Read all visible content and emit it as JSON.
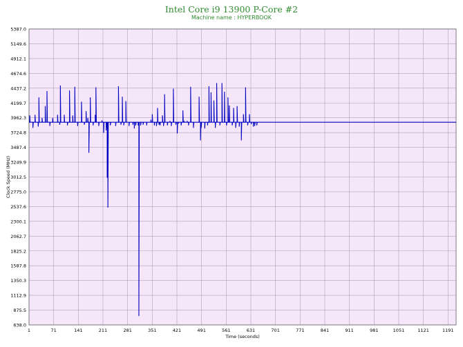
{
  "chart_data": {
    "type": "line",
    "title": "Intel Core i9 13900 P-Core #2",
    "subtitle": "Machine name : HYPERBOOK",
    "xlabel": "Time (seconds)",
    "ylabel": "Clock Speed (MHz)",
    "xlim": [
      1,
      1214
    ],
    "ylim": [
      638.0,
      5387.0
    ],
    "x_ticks": [
      1,
      71,
      141,
      211,
      281,
      351,
      421,
      491,
      561,
      631,
      701,
      771,
      841,
      911,
      981,
      1051,
      1121,
      1191
    ],
    "y_ticks": [
      638.0,
      875.5,
      1112.9,
      1350.3,
      1587.8,
      1825.2,
      2062.7,
      2300.1,
      2537.6,
      2775.0,
      3012.5,
      3249.9,
      3487.4,
      3724.8,
      3962.3,
      4199.7,
      4437.2,
      4674.6,
      4912.1,
      5149.6,
      5387.0
    ],
    "grid": true,
    "baseline": 3890,
    "colors": {
      "line": "#0000c0",
      "plot_bg": "#f5e6fa",
      "grid": "#b0a0b8",
      "title": "#2e8b2e"
    },
    "series": [
      {
        "name": "",
        "events": [
          [
            3,
            4000
          ],
          [
            12,
            3800
          ],
          [
            18,
            4010
          ],
          [
            27,
            3820
          ],
          [
            29,
            4290
          ],
          [
            38,
            3960
          ],
          [
            47,
            4150
          ],
          [
            52,
            4390
          ],
          [
            60,
            3830
          ],
          [
            68,
            3960
          ],
          [
            82,
            4010
          ],
          [
            88,
            3850
          ],
          [
            90,
            4480
          ],
          [
            101,
            4010
          ],
          [
            110,
            3840
          ],
          [
            116,
            4400
          ],
          [
            125,
            4000
          ],
          [
            131,
            4460
          ],
          [
            139,
            3830
          ],
          [
            150,
            4220
          ],
          [
            158,
            3850
          ],
          [
            163,
            4070
          ],
          [
            168,
            3960
          ],
          [
            171,
            3400
          ],
          [
            175,
            4290
          ],
          [
            183,
            3840
          ],
          [
            189,
            4010
          ],
          [
            191,
            4450
          ],
          [
            199,
            3830
          ],
          [
            208,
            3920
          ],
          [
            213,
            3720
          ],
          [
            220,
            3760
          ],
          [
            223,
            3000
          ],
          [
            225,
            2520
          ],
          [
            232,
            3840
          ],
          [
            247,
            3830
          ],
          [
            255,
            4470
          ],
          [
            262,
            3850
          ],
          [
            266,
            4300
          ],
          [
            270,
            3840
          ],
          [
            276,
            4230
          ],
          [
            285,
            3830
          ],
          [
            296,
            3850
          ],
          [
            300,
            3790
          ],
          [
            304,
            3840
          ],
          [
            311,
            3840
          ],
          [
            313,
            780
          ],
          [
            318,
            3840
          ],
          [
            325,
            3850
          ],
          [
            335,
            3840
          ],
          [
            347,
            3930
          ],
          [
            351,
            4020
          ],
          [
            357,
            3840
          ],
          [
            363,
            3830
          ],
          [
            366,
            4120
          ],
          [
            370,
            3850
          ],
          [
            373,
            3840
          ],
          [
            380,
            4000
          ],
          [
            383,
            3830
          ],
          [
            386,
            4340
          ],
          [
            394,
            3840
          ],
          [
            401,
            3910
          ],
          [
            405,
            3830
          ],
          [
            411,
            4430
          ],
          [
            418,
            3850
          ],
          [
            422,
            3710
          ],
          [
            426,
            3880
          ],
          [
            433,
            3840
          ],
          [
            438,
            4080
          ],
          [
            442,
            3900
          ],
          [
            450,
            3910
          ],
          [
            454,
            3840
          ],
          [
            460,
            4460
          ],
          [
            468,
            3800
          ],
          [
            479,
            3890
          ],
          [
            484,
            4300
          ],
          [
            488,
            3600
          ],
          [
            490,
            3800
          ],
          [
            494,
            3890
          ],
          [
            500,
            3790
          ],
          [
            508,
            3840
          ],
          [
            512,
            4470
          ],
          [
            518,
            4370
          ],
          [
            526,
            4240
          ],
          [
            530,
            3800
          ],
          [
            534,
            4520
          ],
          [
            543,
            3840
          ],
          [
            549,
            4520
          ],
          [
            556,
            4380
          ],
          [
            562,
            3840
          ],
          [
            566,
            4290
          ],
          [
            570,
            4160
          ],
          [
            578,
            3840
          ],
          [
            582,
            4120
          ],
          [
            588,
            3800
          ],
          [
            592,
            4150
          ],
          [
            598,
            3820
          ],
          [
            604,
            3600
          ],
          [
            610,
            4020
          ],
          [
            616,
            4450
          ],
          [
            622,
            3840
          ],
          [
            627,
            4020
          ],
          [
            632,
            3860
          ],
          [
            638,
            3820
          ],
          [
            642,
            3830
          ],
          [
            648,
            3840
          ]
        ]
      }
    ]
  }
}
